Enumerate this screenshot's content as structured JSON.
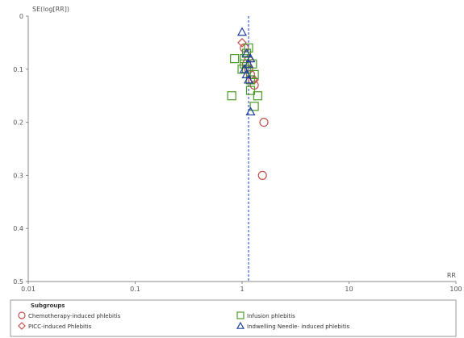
{
  "chart_data": {
    "type": "scatter",
    "title": "",
    "ylabel": "SE(log[RR])",
    "xlabel": "RR",
    "x_scale": "log",
    "xlim": [
      0.01,
      100
    ],
    "ylim": [
      0,
      0.5
    ],
    "y_reversed": true,
    "x_ticks": [
      0.01,
      0.1,
      1,
      10,
      100
    ],
    "x_tick_labels": [
      "0.01",
      "0.1",
      "1",
      "10",
      "100"
    ],
    "y_ticks": [
      0,
      0.1,
      0.2,
      0.3,
      0.4,
      0.5
    ],
    "y_tick_labels": [
      "0",
      "0.1",
      "0.2",
      "0.3",
      "0.4",
      "0.5"
    ],
    "reference_line_x": 1.15,
    "grid": false,
    "legend": {
      "title": "Subgroups",
      "placement": "bottom",
      "entries": [
        {
          "label": "Chemotherapy-induced phlebitis",
          "marker": "circle",
          "color": "#c0504d"
        },
        {
          "label": "PICC-induced Phlebitis",
          "marker": "diamond",
          "color": "#c0504d"
        },
        {
          "label": "Infusion phlebitis",
          "marker": "square",
          "color": "#4c9a2a"
        },
        {
          "label": "Indwelling Needle- induced phlebitis",
          "marker": "triangle",
          "color": "#1f3f9f"
        }
      ]
    },
    "series": [
      {
        "legend_index": 0,
        "marker": "circle",
        "color": "#c0504d",
        "points": [
          [
            1.05,
            0.06
          ],
          [
            1.15,
            0.1
          ],
          [
            1.1,
            0.09
          ],
          [
            1.2,
            0.11
          ],
          [
            1.25,
            0.12
          ],
          [
            1.55,
            0.3
          ],
          [
            1.6,
            0.2
          ],
          [
            1.3,
            0.13
          ]
        ]
      },
      {
        "legend_index": 1,
        "marker": "diamond",
        "color": "#c0504d",
        "points": [
          [
            1.0,
            0.05
          ],
          [
            1.3,
            0.12
          ],
          [
            1.15,
            0.08
          ]
        ]
      },
      {
        "legend_index": 2,
        "marker": "square",
        "color": "#4c9a2a",
        "points": [
          [
            0.85,
            0.08
          ],
          [
            0.8,
            0.15
          ],
          [
            1.4,
            0.15
          ],
          [
            1.3,
            0.17
          ],
          [
            1.05,
            0.08
          ],
          [
            1.1,
            0.1
          ],
          [
            1.2,
            0.12
          ],
          [
            1.15,
            0.06
          ],
          [
            1.25,
            0.09
          ],
          [
            1.0,
            0.1
          ],
          [
            1.1,
            0.07
          ],
          [
            1.3,
            0.11
          ],
          [
            1.2,
            0.14
          ],
          [
            1.05,
            0.09
          ]
        ]
      },
      {
        "legend_index": 3,
        "marker": "triangle",
        "color": "#1f3f9f",
        "points": [
          [
            1.0,
            0.03
          ],
          [
            1.2,
            0.18
          ],
          [
            1.1,
            0.07
          ],
          [
            1.15,
            0.09
          ],
          [
            1.05,
            0.1
          ],
          [
            1.2,
            0.08
          ],
          [
            1.1,
            0.11
          ],
          [
            1.15,
            0.12
          ]
        ]
      }
    ]
  }
}
